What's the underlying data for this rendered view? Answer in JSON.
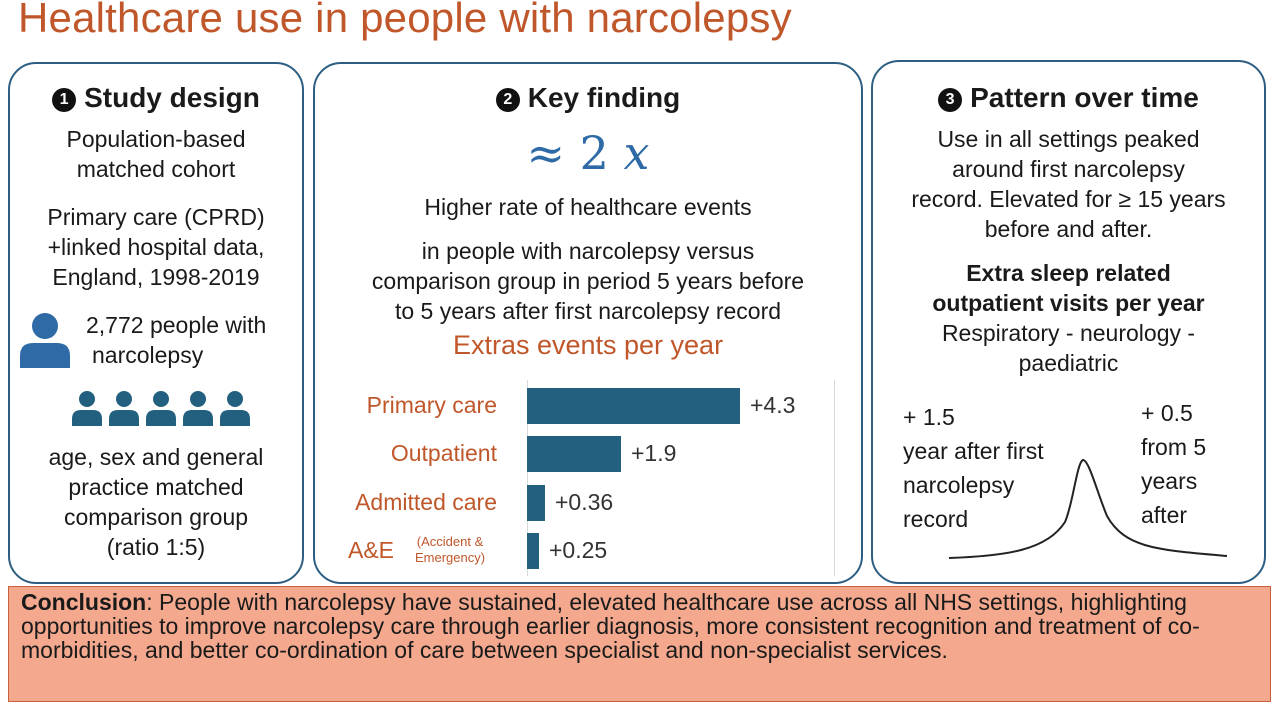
{
  "title": "Healthcare use in people with narcolepsy",
  "panel1": {
    "number": "1",
    "heading": "Study design",
    "line1": "Population-based",
    "line2": "matched cohort",
    "line3": "Primary care (CPRD)",
    "line4": "+linked hospital data,",
    "line5": "England, 1998-2019",
    "people_line1": "2,772 people with",
    "people_line2": "narcolepsy",
    "comp1": "age, sex and general",
    "comp2": "practice matched",
    "comp3": "comparison group",
    "comp4": "(ratio 1:5)",
    "icons": {
      "single": "person-icon",
      "group": "people-group-icon"
    }
  },
  "panel2": {
    "number": "2",
    "heading": "Key finding",
    "big_approx": "≈ 2",
    "big_x": "x",
    "line1": "Higher rate of healthcare events",
    "line2": "in people with narcolepsy versus",
    "line3": "comparison group in period 5 years before",
    "line4": "to 5 years after first narcolepsy record",
    "chart_title": "Extras events per year",
    "ae_note1": "(Accident &",
    "ae_note2": "Emergency)"
  },
  "chart_data": {
    "type": "bar",
    "orientation": "horizontal",
    "title": "Extras events per year",
    "categories": [
      "Primary care",
      "Outpatient",
      "Admitted care",
      "A&E"
    ],
    "values": [
      4.3,
      1.9,
      0.36,
      0.25
    ],
    "labels": [
      "+4.3",
      "+1.9",
      "+0.36",
      "+0.25"
    ],
    "xlim": [
      0,
      6.2
    ],
    "bar_color": "#23607f",
    "label_color": "#c0572a"
  },
  "panel3": {
    "number": "3",
    "heading": "Pattern over time",
    "line1": "Use in all settings peaked",
    "line2": "around first narcolepsy",
    "line3": "record. Elevated for ≥ 15 years",
    "line4": "before and after.",
    "bold1": "Extra sleep related",
    "bold2": "outpatient visits per year",
    "line5": "Respiratory -  neurology -",
    "line6": "paediatric",
    "left1": "+ 1.5",
    "left2": "year after first",
    "left3": "narcolepsy",
    "left4": "record",
    "right1": "+ 0.5",
    "right2": "from 5",
    "right3": "years",
    "right4": "after"
  },
  "conclusion": {
    "label": "Conclusion",
    "text": ": People with narcolepsy have sustained, elevated healthcare use across all NHS settings, highlighting opportunities to improve narcolepsy care through earlier diagnosis, more consistent recognition and treatment of co-morbidities, and better co-ordination of care between specialist and non-specialist services."
  },
  "colors": {
    "title": "#c0572a",
    "panel_border": "#2e5f82",
    "accent_blue": "#2e6aa6",
    "icon_blue": "#23607f",
    "conclusion_bg": "#f4a88d"
  }
}
